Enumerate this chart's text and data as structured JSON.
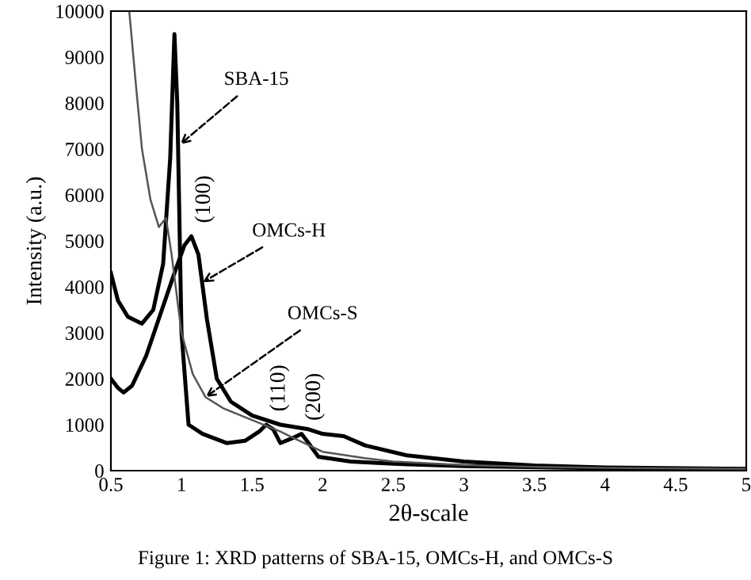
{
  "chart_data": {
    "type": "line",
    "xlabel": "2θ-scale",
    "ylabel": "Intensity (a.u.)",
    "xlim": [
      0.5,
      5
    ],
    "xticks": [
      0.5,
      1,
      1.5,
      2,
      2.5,
      3,
      3.5,
      4,
      4.5,
      5
    ],
    "ylim": [
      0,
      10000
    ],
    "yticks": [
      0,
      1000,
      2000,
      3000,
      4000,
      5000,
      6000,
      7000,
      8000,
      9000,
      10000
    ],
    "grid": false,
    "legend": false,
    "marker": "none",
    "line_style": "solid",
    "series": [
      {
        "color": "#000000",
        "x": [
          0.5,
          0.55,
          0.62,
          0.72,
          0.8,
          0.87,
          0.92,
          0.95,
          0.97,
          1.0,
          1.05,
          1.15,
          1.32,
          1.45,
          1.55,
          1.6,
          1.65,
          1.7,
          1.78,
          1.85,
          1.9,
          1.97,
          2.2,
          2.5,
          3.0,
          4.0,
          5.0
        ],
        "values": [
          4300,
          3700,
          3350,
          3200,
          3500,
          4500,
          6800,
          9500,
          8000,
          3000,
          1000,
          800,
          600,
          650,
          850,
          1000,
          900,
          600,
          700,
          800,
          600,
          300,
          200,
          150,
          100,
          50,
          30
        ]
      },
      {
        "color": "#000000",
        "x": [
          0.5,
          0.55,
          0.59,
          0.65,
          0.75,
          0.85,
          0.95,
          1.02,
          1.07,
          1.12,
          1.18,
          1.25,
          1.35,
          1.5,
          1.7,
          1.9,
          2.0,
          2.15,
          2.3,
          2.6,
          3.0,
          3.5,
          4.0,
          5.0
        ],
        "values": [
          2000,
          1800,
          1700,
          1850,
          2500,
          3400,
          4300,
          4900,
          5100,
          4700,
          3300,
          2000,
          1500,
          1200,
          1000,
          900,
          800,
          750,
          550,
          330,
          200,
          110,
          70,
          40
        ]
      },
      {
        "color": "#555555",
        "x": [
          0.63,
          0.68,
          0.72,
          0.78,
          0.84,
          0.89,
          0.93,
          1.0,
          1.08,
          1.17,
          1.3,
          1.5,
          1.7,
          1.8,
          2.0,
          2.3,
          2.5,
          3.0,
          3.5,
          4.0,
          5.0
        ],
        "values": [
          10000,
          8300,
          7000,
          5900,
          5300,
          5500,
          4700,
          3000,
          2100,
          1600,
          1350,
          1100,
          850,
          700,
          410,
          270,
          200,
          120,
          80,
          60,
          40
        ]
      }
    ],
    "annotations": [
      {
        "text": "SBA-15",
        "x": 0.99,
        "y": 7100
      },
      {
        "text": "OMCs-H",
        "x": 1.15,
        "y": 4100
      },
      {
        "text": "OMCs-S",
        "x": 1.17,
        "y": 1600
      },
      {
        "text": "(100)",
        "x": 1.07,
        "y": 5100
      },
      {
        "text": "(110)",
        "x": 1.6,
        "y": 1000
      },
      {
        "text": "(200)",
        "x": 1.85,
        "y": 800
      },
      "Figure 1: XRD patterns of SBA-15, OMCs-H, and OMCs-S"
    ]
  }
}
